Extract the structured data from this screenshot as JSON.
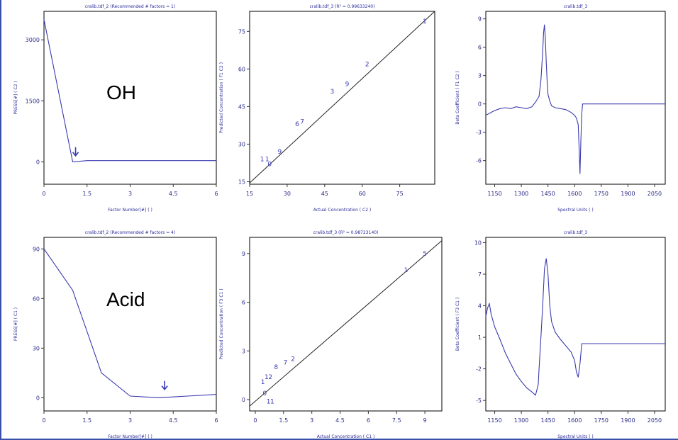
{
  "annotations": {
    "top_label": "OH",
    "bottom_label": "Acid"
  },
  "chart_data": [
    {
      "type": "line",
      "title": "cralib.tdf_2 (Recommended # factors = 1)",
      "xlabel": "Factor Number[#] ( )",
      "ylabel": "PRESS[#] ( C2 )",
      "xlim": [
        0,
        6
      ],
      "ylim": [
        -550,
        3700
      ],
      "xticks": [
        "0",
        "1.5",
        "3",
        "4.5",
        "6"
      ],
      "yticks": [
        "0",
        "1500",
        "3000"
      ],
      "series": [
        {
          "x": [
            0,
            1,
            1.5,
            6
          ],
          "y": [
            3500,
            0,
            30,
            30
          ]
        }
      ],
      "arrow_at": {
        "x": 1.1,
        "y": 150
      }
    },
    {
      "type": "scatter",
      "title": "cralib.tdf_3 (R² = 0.99633240)",
      "xlabel": "Actual Concentration ( C2 )",
      "ylabel": "Predicted Concentration ( F1 C2 )",
      "xlim": [
        15,
        89
      ],
      "ylim": [
        14,
        83
      ],
      "xticks": [
        "15",
        "30",
        "45",
        "60",
        "75"
      ],
      "yticks": [
        "15",
        "30",
        "45",
        "60",
        "75"
      ],
      "fit_line": {
        "x": [
          15,
          89
        ],
        "y": [
          14.5,
          83
        ]
      },
      "points": [
        {
          "label": "1",
          "x": 85,
          "y": 79
        },
        {
          "label": "2",
          "x": 62,
          "y": 62
        },
        {
          "label": "9",
          "x": 54,
          "y": 54
        },
        {
          "label": "3",
          "x": 48,
          "y": 51
        },
        {
          "label": "6",
          "x": 34,
          "y": 38
        },
        {
          "label": "7",
          "x": 36,
          "y": 39
        },
        {
          "label": "9",
          "x": 27,
          "y": 27
        },
        {
          "label": "1",
          "x": 20,
          "y": 24
        },
        {
          "label": "1",
          "x": 22,
          "y": 24
        },
        {
          "label": "0",
          "x": 23,
          "y": 22
        }
      ]
    },
    {
      "type": "line",
      "title": "cralib.tdf_3",
      "xlabel": "Spectral Units ( )",
      "ylabel": "Beta Coefficient ( F1 C2 )",
      "xlim": [
        1100,
        2110
      ],
      "ylim": [
        -8.5,
        9.8
      ],
      "xticks": [
        "1150",
        "1300",
        "1450",
        "1600",
        "1750",
        "1900",
        "2050"
      ],
      "yticks": [
        "-6",
        "-3",
        "0",
        "3",
        "6",
        "9"
      ],
      "series": [
        {
          "x": [
            1100,
            1120,
            1150,
            1180,
            1210,
            1240,
            1270,
            1300,
            1330,
            1360,
            1380,
            1400,
            1410,
            1420,
            1425,
            1430,
            1435,
            1440,
            1445,
            1450,
            1460,
            1470,
            1490,
            1520,
            1550,
            1580,
            1600,
            1610,
            1620,
            1625,
            1630,
            1635,
            1640,
            1645,
            1650,
            1700,
            1800,
            1900,
            2000,
            2110
          ],
          "y": [
            -1.2,
            -1.0,
            -0.7,
            -0.5,
            -0.4,
            -0.5,
            -0.3,
            -0.4,
            -0.5,
            -0.3,
            0.2,
            0.8,
            2.5,
            5.5,
            7.5,
            8.4,
            7.0,
            4.5,
            2.5,
            1.0,
            0.3,
            -0.2,
            -0.4,
            -0.5,
            -0.6,
            -0.9,
            -1.2,
            -1.5,
            -2.2,
            -4.5,
            -7.4,
            -4.0,
            -1.0,
            0,
            0,
            0,
            0,
            0,
            0,
            0
          ]
        }
      ]
    },
    {
      "type": "line",
      "title": "cralib.tdf_2 (Recommended # factors = 4)",
      "xlabel": "Factor Number[#] ( )",
      "ylabel": "PRESS[#] ( C1 )",
      "xlim": [
        0,
        6
      ],
      "ylim": [
        -8,
        97
      ],
      "xticks": [
        "0",
        "1.5",
        "3",
        "4.5",
        "6"
      ],
      "yticks": [
        "0",
        "30",
        "60",
        "90"
      ],
      "series": [
        {
          "x": [
            0,
            1,
            2,
            3,
            4,
            5,
            6
          ],
          "y": [
            90,
            65,
            15,
            1,
            0,
            1,
            2
          ]
        }
      ],
      "arrow_at": {
        "x": 4.2,
        "y": 5
      }
    },
    {
      "type": "scatter",
      "title": "cralib.tdf_3 (R² = 0.98723140)",
      "xlabel": "Actual Concentration ( C1 )",
      "ylabel": "Predicted Concentration ( F3 C1 )",
      "xlim": [
        -0.3,
        9.9
      ],
      "ylim": [
        -0.7,
        10.0
      ],
      "xticks": [
        "0",
        "1.5",
        "3",
        "4.5",
        "6",
        "7.5",
        "9"
      ],
      "yticks": [
        "0",
        "3",
        "6",
        "9"
      ],
      "fit_line": {
        "x": [
          -0.3,
          9.9
        ],
        "y": [
          -0.4,
          9.8
        ]
      },
      "points": [
        {
          "label": "5",
          "x": 9.0,
          "y": 9.0
        },
        {
          "label": "1",
          "x": 8.0,
          "y": 8.0
        },
        {
          "label": "2",
          "x": 2.0,
          "y": 2.5
        },
        {
          "label": "7",
          "x": 1.6,
          "y": 2.3
        },
        {
          "label": "8",
          "x": 1.1,
          "y": 2.0
        },
        {
          "label": "1",
          "x": 0.6,
          "y": 1.4
        },
        {
          "label": "2",
          "x": 0.8,
          "y": 1.4
        },
        {
          "label": "1",
          "x": 0.4,
          "y": 1.1
        },
        {
          "label": "0",
          "x": 0.5,
          "y": 0.4
        },
        {
          "label": "1",
          "x": 0.7,
          "y": -0.1
        },
        {
          "label": "1",
          "x": 0.9,
          "y": -0.1
        }
      ]
    },
    {
      "type": "line",
      "title": "cralib.tdf_3",
      "xlabel": "Spectral Units ( )",
      "ylabel": "Beta Coefficient ( F3 C1 )",
      "xlim": [
        1100,
        2110
      ],
      "ylim": [
        -6,
        10.5
      ],
      "xticks": [
        "1150",
        "1300",
        "1450",
        "1600",
        "1750",
        "1900",
        "2050"
      ],
      "yticks": [
        "-5",
        "-2",
        "1",
        "4",
        "7",
        "10"
      ],
      "series": [
        {
          "x": [
            1100,
            1110,
            1120,
            1130,
            1150,
            1180,
            1210,
            1240,
            1270,
            1300,
            1330,
            1360,
            1380,
            1395,
            1400,
            1410,
            1420,
            1430,
            1440,
            1450,
            1460,
            1470,
            1490,
            1520,
            1550,
            1580,
            1600,
            1610,
            1620,
            1630,
            1640,
            1650,
            1700,
            1800,
            1900,
            2000,
            2110
          ],
          "y": [
            3.0,
            3.8,
            4.2,
            3.2,
            2.0,
            0.8,
            -0.5,
            -1.5,
            -2.5,
            -3.2,
            -3.8,
            -4.2,
            -4.5,
            -3.5,
            -2.0,
            1.0,
            4.0,
            7.5,
            8.5,
            7.0,
            4.0,
            2.5,
            1.5,
            0.8,
            0.2,
            -0.4,
            -1.2,
            -2.3,
            -2.8,
            -1.5,
            0.4,
            0.4,
            0.4,
            0.4,
            0.4,
            0.4,
            0.4
          ]
        }
      ]
    }
  ]
}
